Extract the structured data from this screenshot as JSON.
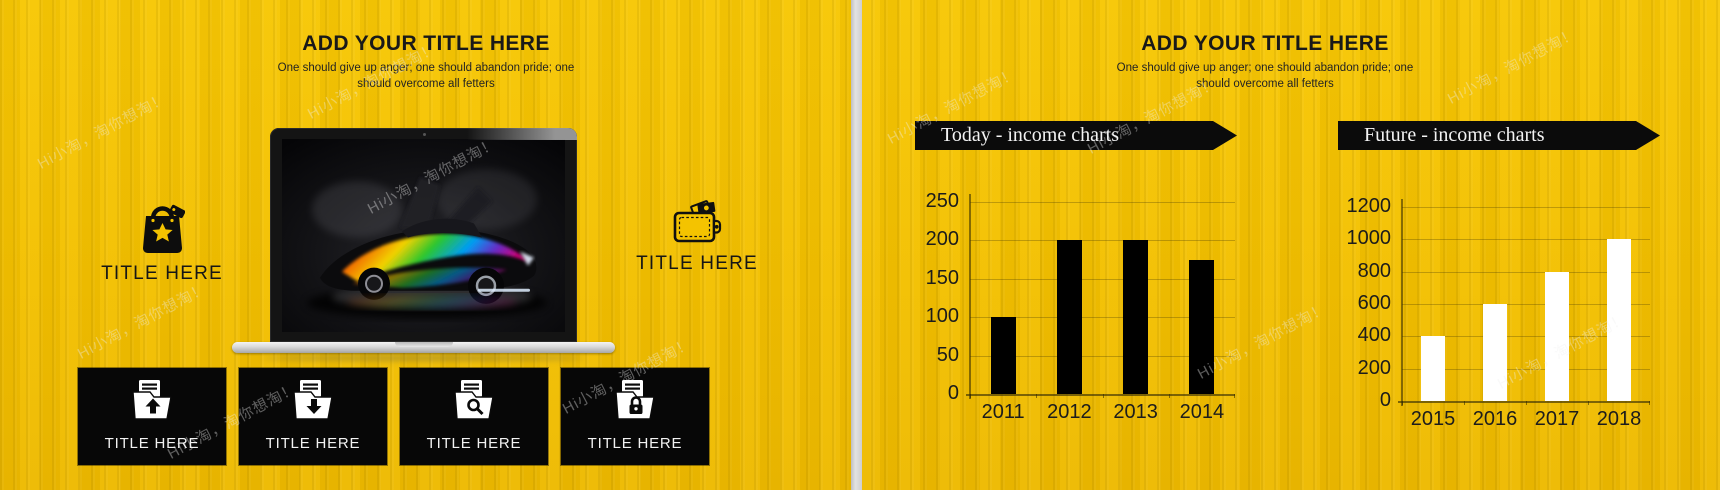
{
  "watermark": {
    "text": "Hi小淘，淘你想淘！"
  },
  "left_slide": {
    "title": "ADD YOUR TITLE HERE",
    "subtitle_line1": "One should give up anger; one should abandon pride; one",
    "subtitle_line2": "should overcome all fetters",
    "features": [
      {
        "label": "TITLE HERE",
        "icon": "shopping-bag-star-icon"
      },
      {
        "label": "TITLE HERE",
        "icon": "wallet-money-icon"
      }
    ],
    "folder_boxes": [
      {
        "label": "TITLE HERE",
        "icon": "folder-upload-icon"
      },
      {
        "label": "TITLE HERE",
        "icon": "folder-download-icon"
      },
      {
        "label": "TITLE HERE",
        "icon": "folder-search-icon"
      },
      {
        "label": "TITLE HERE",
        "icon": "folder-lock-icon"
      }
    ]
  },
  "right_slide": {
    "title": "ADD YOUR TITLE HERE",
    "subtitle_line1": "One should give up anger; one should abandon pride; one",
    "subtitle_line2": "should overcome all fetters",
    "banner_today": "Today - income charts",
    "banner_future": "Future - income charts"
  },
  "chart_data": [
    {
      "type": "bar",
      "title": "Today - income charts",
      "categories": [
        "2011",
        "2012",
        "2013",
        "2014"
      ],
      "values": [
        100,
        200,
        200,
        175
      ],
      "xlabel": "",
      "ylabel": "",
      "ylim": [
        0,
        250
      ],
      "ytick_step": 50,
      "bar_color": "#000000",
      "grid": true,
      "legend": false
    },
    {
      "type": "bar",
      "title": "Future - income charts",
      "categories": [
        "2015",
        "2016",
        "2017",
        "2018"
      ],
      "values": [
        400,
        600,
        800,
        1000
      ],
      "xlabel": "",
      "ylabel": "",
      "ylim": [
        0,
        1200
      ],
      "ytick_step": 200,
      "bar_color": "#ffffff",
      "grid": true,
      "legend": false
    }
  ],
  "colors": {
    "background": "#F3C100",
    "accent_black": "#0b0b0b",
    "divider": "#d6d6d6",
    "bar_today": "#000000",
    "bar_future": "#ffffff"
  }
}
